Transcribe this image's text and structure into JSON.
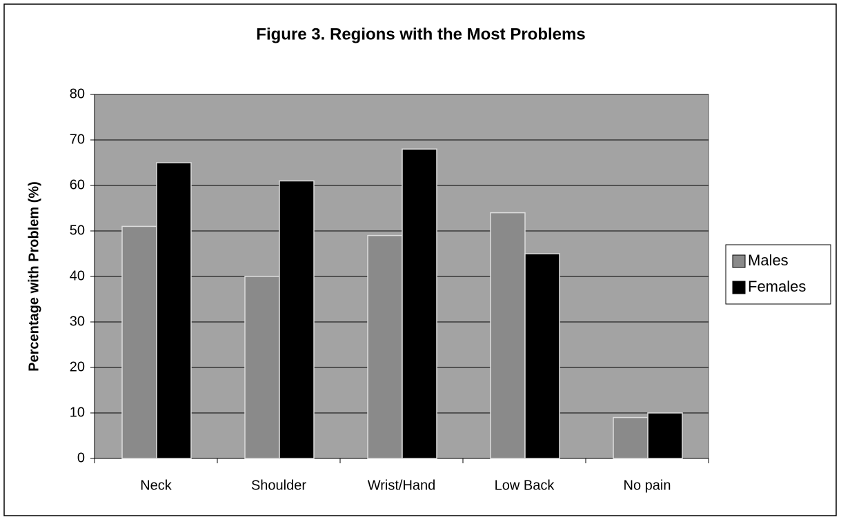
{
  "chart_data": {
    "type": "bar",
    "title": "Figure 3.  Regions with the Most Problems",
    "y_label": "Percentage with Problem (%)",
    "categories": [
      "Neck",
      "Shoulder",
      "Wrist/Hand",
      "Low Back",
      "No pain"
    ],
    "series": [
      {
        "name": "Males",
        "color": "#8a8a8a",
        "values": [
          51,
          40,
          49,
          54,
          9
        ]
      },
      {
        "name": "Females",
        "color": "#000000",
        "values": [
          65,
          61,
          68,
          45,
          10
        ]
      }
    ],
    "ylim": [
      0,
      80
    ],
    "yticks": [
      0,
      10,
      20,
      30,
      40,
      50,
      60,
      70,
      80
    ],
    "grid": true,
    "plot_background": "#a3a3a3",
    "legend": "right"
  }
}
